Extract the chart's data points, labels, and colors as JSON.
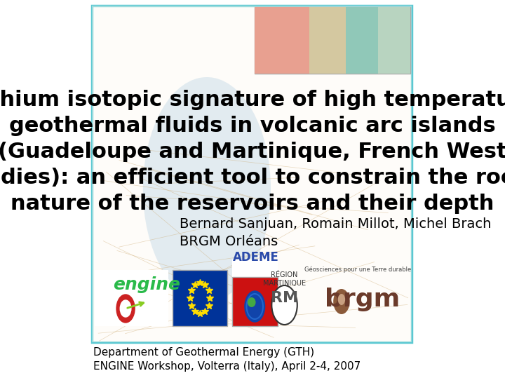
{
  "title_lines": [
    "Lithium isotopic signature of high temperature",
    "geothermal fluids in volcanic arc islands",
    "(Guadeloupe and Martinique, French West",
    "Indies): an efficient tool to constrain the rock",
    "nature of the reservoirs and their depth"
  ],
  "author_line": "Bernard Sanjuan, Romain Millot, Michel Brach",
  "institution_line": "BRGM Orléans",
  "footer_line1": "Department of Geothermal Energy (GTH)",
  "footer_line2": "ENGINE Workshop, Volterra (Italy), April 2-4, 2007",
  "border_color": "#5bc8d2",
  "background_color": "#ffffff",
  "title_color": "#000000",
  "title_fontsize": 22,
  "author_fontsize": 14,
  "institution_fontsize": 14,
  "footer_fontsize": 11
}
